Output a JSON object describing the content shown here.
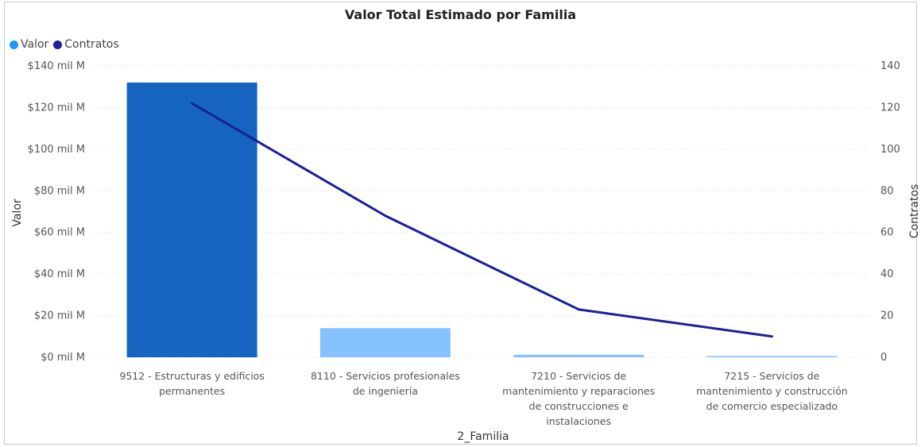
{
  "chart_data": {
    "type": "bar+line",
    "title": "Valor Total Estimado por Familia",
    "xlabel": "2_Familia",
    "ylabel": "Valor",
    "y2label": "Contratos",
    "categories": [
      [
        "9512 - Estructuras y edificios",
        "permanentes"
      ],
      [
        "8110 - Servicios profesionales",
        "de ingeniería"
      ],
      [
        "7210 - Servicios de",
        "mantenimiento y reparaciones",
        "de construcciones e",
        "instalaciones"
      ],
      [
        "7215 - Servicios de",
        "mantenimiento y construcción",
        "de comercio especializado"
      ]
    ],
    "series": [
      {
        "name": "Valor",
        "kind": "bar",
        "axis": "left",
        "values": [
          132,
          14,
          1.2,
          0.6
        ],
        "colors": [
          "#1565c0",
          "#86c2ff",
          "#86c2ff",
          "#86c2ff"
        ]
      },
      {
        "name": "Contratos",
        "kind": "line",
        "axis": "right",
        "values": [
          122,
          68,
          23,
          10
        ],
        "color": "#1a1f9c"
      }
    ],
    "ylim": [
      0,
      140
    ],
    "y2lim": [
      0,
      140
    ],
    "yticks": [
      "$0 mil M",
      "$20 mil M",
      "$40 mil M",
      "$60 mil M",
      "$80 mil M",
      "$100 mil M",
      "$120 mil M",
      "$140 mil M"
    ],
    "y2ticks": [
      "0",
      "20",
      "40",
      "60",
      "80",
      "100",
      "120",
      "140"
    ],
    "grid": true,
    "legend_position": "top-left"
  },
  "legend": [
    {
      "label": "Valor",
      "color": "#2196f3"
    },
    {
      "label": "Contratos",
      "color": "#1a1f9c"
    }
  ]
}
